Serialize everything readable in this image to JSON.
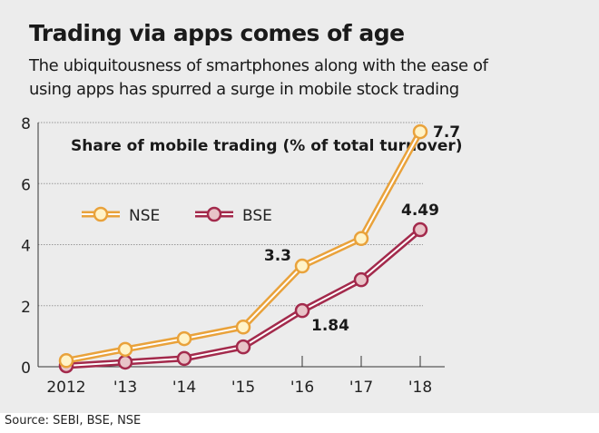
{
  "title": "Trading via apps comes of age",
  "subtitle_lines": [
    "The ubiquitousness of smartphones along with the ease of",
    "using apps has spurred a surge in mobile stock trading"
  ],
  "source": "Source: SEBI, BSE, NSE",
  "chart_data": {
    "type": "line",
    "title": "Share of mobile trading (% of total turnover)",
    "categories": [
      "2012",
      "'13",
      "'14",
      "'15",
      "'16",
      "'17",
      "'18"
    ],
    "series": [
      {
        "name": "NSE",
        "color": "#e9a23b",
        "values": [
          0.2,
          0.57,
          0.92,
          1.3,
          3.3,
          4.2,
          7.7
        ]
      },
      {
        "name": "BSE",
        "color": "#a32a4c",
        "values": [
          0.03,
          0.15,
          0.27,
          0.65,
          1.84,
          2.85,
          4.49
        ]
      }
    ],
    "data_labels": [
      {
        "series": "NSE",
        "category": "'16",
        "text": "3.3"
      },
      {
        "series": "NSE",
        "category": "'18",
        "text": "7.7"
      },
      {
        "series": "BSE",
        "category": "'16",
        "text": "1.84"
      },
      {
        "series": "BSE",
        "category": "'18",
        "text": "4.49"
      }
    ],
    "yticks": [
      "0",
      "2",
      "4",
      "6",
      "8"
    ],
    "ylim": [
      0,
      8
    ],
    "grid": "horizontal dotted",
    "legend": "top-left"
  }
}
